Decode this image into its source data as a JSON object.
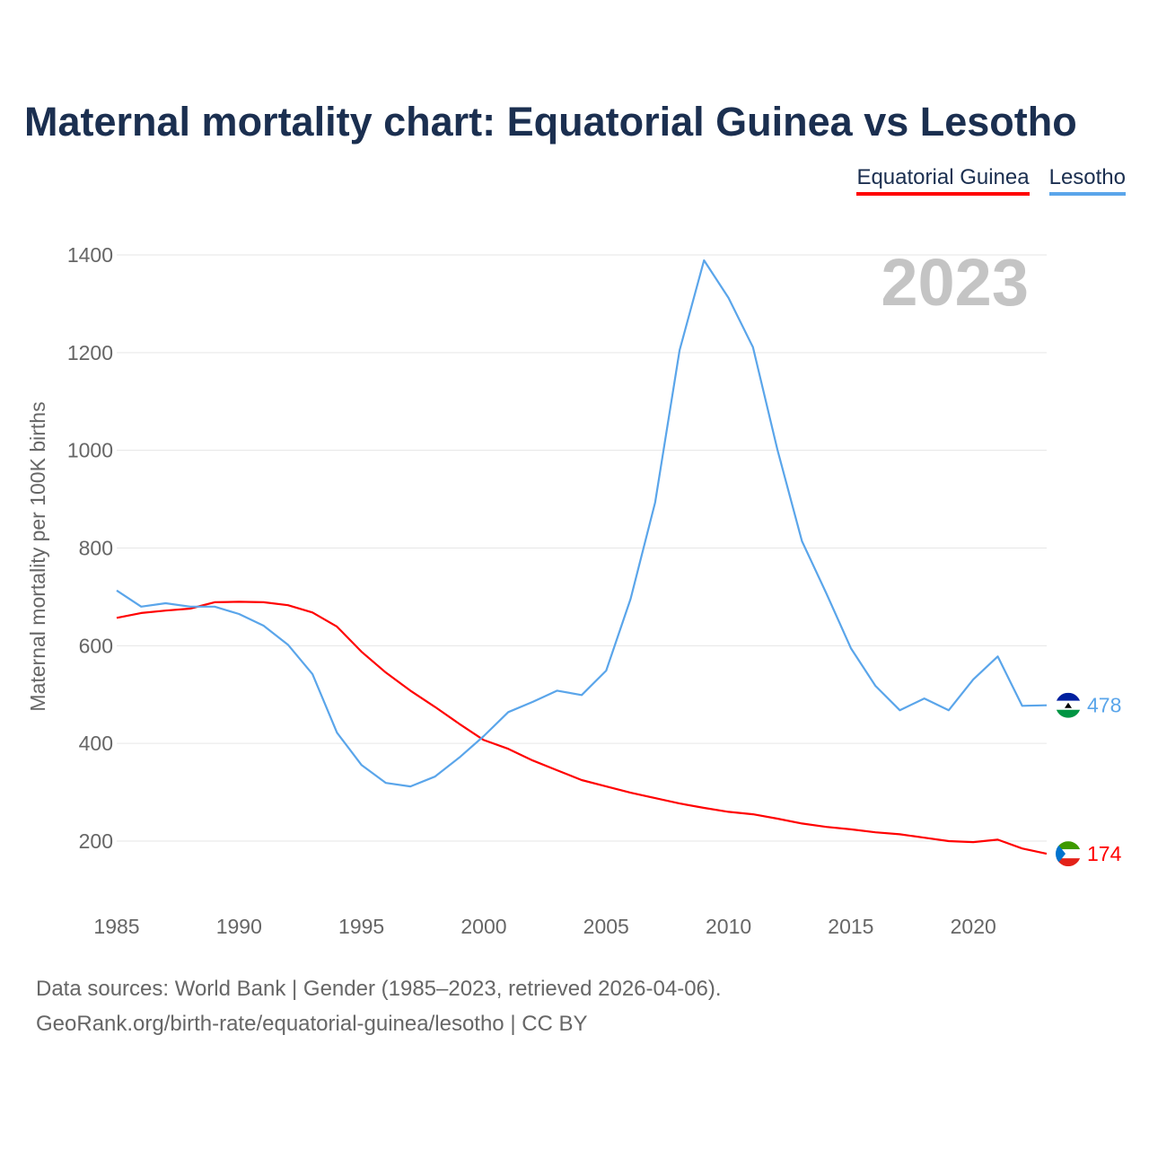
{
  "chart_data": {
    "type": "line",
    "title": "Maternal mortality chart: Equatorial Guinea vs Lesotho",
    "ylabel": "Maternal mortality per 100K births",
    "xlabel": "",
    "year_label": "2023",
    "xlim": [
      1985,
      2023
    ],
    "ylim": [
      80,
      1420
    ],
    "xticks": [
      1985,
      1990,
      1995,
      2000,
      2005,
      2010,
      2015,
      2020
    ],
    "yticks": [
      200,
      400,
      600,
      800,
      1000,
      1200,
      1400
    ],
    "grid": true,
    "legend_position": "top-right",
    "x": [
      1985,
      1986,
      1987,
      1988,
      1989,
      1990,
      1991,
      1992,
      1993,
      1994,
      1995,
      1996,
      1997,
      1998,
      1999,
      2000,
      2001,
      2002,
      2003,
      2004,
      2005,
      2006,
      2007,
      2008,
      2009,
      2010,
      2011,
      2012,
      2013,
      2014,
      2015,
      2016,
      2017,
      2018,
      2019,
      2020,
      2021,
      2022,
      2023
    ],
    "series": [
      {
        "name": "Equatorial Guinea",
        "color": "#ff0000",
        "end_label": "174",
        "values": [
          657,
          667,
          672,
          676,
          689,
          690,
          689,
          683,
          668,
          639,
          588,
          545,
          508,
          475,
          440,
          407,
          389,
          365,
          345,
          325,
          312,
          299,
          288,
          277,
          268,
          260,
          255,
          246,
          236,
          229,
          224,
          218,
          214,
          207,
          200,
          198,
          203,
          185,
          174
        ]
      },
      {
        "name": "Lesotho",
        "color": "#5aa5ea",
        "end_label": "478",
        "values": [
          713,
          680,
          687,
          680,
          680,
          665,
          641,
          602,
          542,
          422,
          356,
          319,
          312,
          332,
          371,
          415,
          464,
          485,
          508,
          499,
          549,
          696,
          893,
          1205,
          1389,
          1312,
          1211,
          1001,
          814,
          707,
          595,
          518,
          468,
          492,
          468,
          531,
          578,
          477,
          478
        ]
      }
    ]
  },
  "footer": {
    "source_line": "Data sources: World Bank | Gender (1985–2023, retrieved 2026-04-06).",
    "credit_line": "GeoRank.org/birth-rate/equatorial-guinea/lesotho | CC BY"
  }
}
